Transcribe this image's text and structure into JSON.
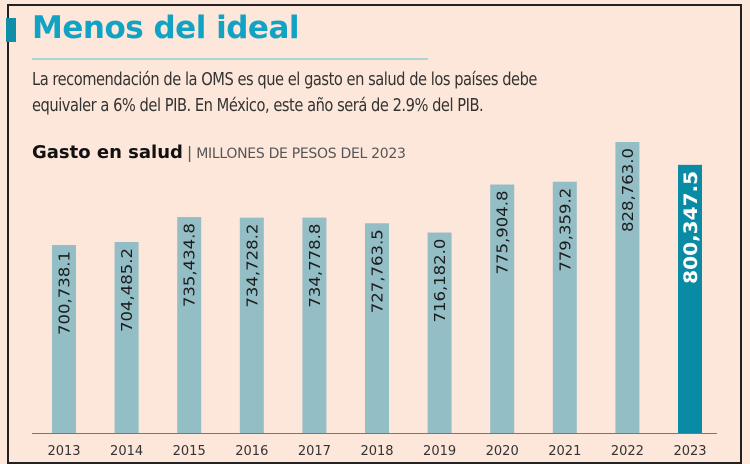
{
  "header": {
    "title": "Menos del ideal",
    "description_lines": [
      "La recomendación de la OMS es que el gasto en salud de los países debe",
      "equivaler a 6% del PIB. En México, este año será de 2.9% del PIB."
    ]
  },
  "colors": {
    "background": "#fde7da",
    "title": "#12a3c4",
    "bar": "#93bec6",
    "bar_highlight": "#0a8ba5",
    "label": "#1c1c1c",
    "label_highlight": "#ffffff"
  },
  "chart_data": {
    "type": "bar",
    "title": "Gasto en salud",
    "subtitle": "MILLONES DE PESOS DEL 2023",
    "xlabel": "",
    "ylabel": "",
    "categories": [
      "2013",
      "2014",
      "2015",
      "2016",
      "2017",
      "2018",
      "2019",
      "2020",
      "2021",
      "2022",
      "2023"
    ],
    "values": [
      700738.1,
      704485.2,
      735434.8,
      734728.2,
      734778.8,
      727763.5,
      716182.0,
      775904.8,
      779359.2,
      828763.0,
      800347.5
    ],
    "labels": [
      "700,738.1",
      "704,485.2",
      "735,434.8",
      "734,728.2",
      "734,778.8",
      "727,763.5",
      "716,182.0",
      "775,904.8",
      "779,359.2",
      "828,763.0",
      "800,347.5"
    ],
    "highlight_index": 10,
    "ylim": [
      467000,
      828763
    ],
    "grid": false,
    "legend": "none"
  }
}
